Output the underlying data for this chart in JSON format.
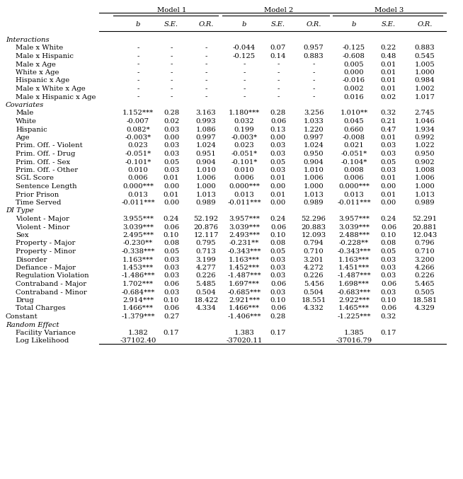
{
  "headers": [
    "b",
    "S.E.",
    "O.R.",
    "b",
    "S.E.",
    "O.R.",
    "b",
    "S.E.",
    "O.R."
  ],
  "model_labels": [
    "Model 1",
    "Model 2",
    "Model 3"
  ],
  "sections": [
    {
      "name": "Interactions",
      "rows": [
        [
          "Male x White",
          "-",
          "-",
          "-",
          "-0.044",
          "0.07",
          "0.957",
          "-0.125",
          "0.22",
          "0.883"
        ],
        [
          "Male x Hispanic",
          "-",
          "-",
          "-",
          "-0.125",
          "0.14",
          "0.883",
          "-0.608",
          "0.48",
          "0.545"
        ],
        [
          "Male x Age",
          "-",
          "-",
          "-",
          "-",
          "-",
          "-",
          "0.005",
          "0.01",
          "1.005"
        ],
        [
          "White x Age",
          "-",
          "-",
          "-",
          "-",
          "-",
          "-",
          "0.000",
          "0.01",
          "1.000"
        ],
        [
          "Hispanic x Age",
          "-",
          "-",
          "-",
          "-",
          "-",
          "-",
          "-0.016",
          "0.01",
          "0.984"
        ],
        [
          "Male x White x Age",
          "-",
          "-",
          "-",
          "-",
          "-",
          "-",
          "0.002",
          "0.01",
          "1.002"
        ],
        [
          "Male x Hispanic x Age",
          "-",
          "-",
          "-",
          "-",
          "-",
          "-",
          "0.016",
          "0.02",
          "1.017"
        ]
      ]
    },
    {
      "name": "Covariates",
      "rows": [
        [
          "Male",
          "1.152***",
          "0.28",
          "3.163",
          "1.180***",
          "0.28",
          "3.256",
          "1.010**",
          "0.32",
          "2.745"
        ],
        [
          "White",
          "-0.007",
          "0.02",
          "0.993",
          "0.032",
          "0.06",
          "1.033",
          "0.045",
          "0.21",
          "1.046"
        ],
        [
          "Hispanic",
          "0.082*",
          "0.03",
          "1.086",
          "0.199",
          "0.13",
          "1.220",
          "0.660",
          "0.47",
          "1.934"
        ],
        [
          "Age",
          "-0.003*",
          "0.00",
          "0.997",
          "-0.003*",
          "0.00",
          "0.997",
          "-0.008",
          "0.01",
          "0.992"
        ],
        [
          "Prim. Off. - Violent",
          "0.023",
          "0.03",
          "1.024",
          "0.023",
          "0.03",
          "1.024",
          "0.021",
          "0.03",
          "1.022"
        ],
        [
          "Prim. Off. - Drug",
          "-0.051*",
          "0.03",
          "0.951",
          "-0.051*",
          "0.03",
          "0.950",
          "-0.051*",
          "0.03",
          "0.950"
        ],
        [
          "Prim. Off. - Sex",
          "-0.101*",
          "0.05",
          "0.904",
          "-0.101*",
          "0.05",
          "0.904",
          "-0.104*",
          "0.05",
          "0.902"
        ],
        [
          "Prim. Off. - Other",
          "0.010",
          "0.03",
          "1.010",
          "0.010",
          "0.03",
          "1.010",
          "0.008",
          "0.03",
          "1.008"
        ],
        [
          "SGL Score",
          "0.006",
          "0.01",
          "1.006",
          "0.006",
          "0.01",
          "1.006",
          "0.006",
          "0.01",
          "1.006"
        ],
        [
          "Sentence Length",
          "0.000***",
          "0.00",
          "1.000",
          "0.000***",
          "0.00",
          "1.000",
          "0.000***",
          "0.00",
          "1.000"
        ],
        [
          "Prior Prison",
          "0.013",
          "0.01",
          "1.013",
          "0.013",
          "0.01",
          "1.013",
          "0.013",
          "0.01",
          "1.013"
        ],
        [
          "Time Served",
          "-0.011***",
          "0.00",
          "0.989",
          "-0.011***",
          "0.00",
          "0.989",
          "-0.011***",
          "0.00",
          "0.989"
        ]
      ]
    },
    {
      "name": "DI Type",
      "rows": [
        [
          "Violent - Major",
          "3.955***",
          "0.24",
          "52.192",
          "3.957***",
          "0.24",
          "52.296",
          "3.957***",
          "0.24",
          "52.291"
        ],
        [
          "Violent - Minor",
          "3.039***",
          "0.06",
          "20.876",
          "3.039***",
          "0.06",
          "20.883",
          "3.039***",
          "0.06",
          "20.881"
        ],
        [
          "Sex",
          "2.495***",
          "0.10",
          "12.117",
          "2.493***",
          "0.10",
          "12.093",
          "2.488***",
          "0.10",
          "12.043"
        ],
        [
          "Property - Major",
          "-0.230**",
          "0.08",
          "0.795",
          "-0.231**",
          "0.08",
          "0.794",
          "-0.228**",
          "0.08",
          "0.796"
        ],
        [
          "Property - Minor",
          "-0.338***",
          "0.05",
          "0.713",
          "-0.343***",
          "0.05",
          "0.710",
          "-0.343***",
          "0.05",
          "0.710"
        ],
        [
          "Disorder",
          "1.163***",
          "0.03",
          "3.199",
          "1.163***",
          "0.03",
          "3.201",
          "1.163***",
          "0.03",
          "3.200"
        ],
        [
          "Defiance - Major",
          "1.453***",
          "0.03",
          "4.277",
          "1.452***",
          "0.03",
          "4.272",
          "1.451***",
          "0.03",
          "4.266"
        ],
        [
          "Regulation Violation",
          "-1.486***",
          "0.03",
          "0.226",
          "-1.487***",
          "0.03",
          "0.226",
          "-1.487***",
          "0.03",
          "0.226"
        ],
        [
          "Contraband - Major",
          "1.702***",
          "0.06",
          "5.485",
          "1.697***",
          "0.06",
          "5.456",
          "1.698***",
          "0.06",
          "5.465"
        ],
        [
          "Contraband - Minor",
          "-0.684***",
          "0.03",
          "0.504",
          "-0.685***",
          "0.03",
          "0.504",
          "-0.683***",
          "0.03",
          "0.505"
        ],
        [
          "Drug",
          "2.914***",
          "0.10",
          "18.422",
          "2.921***",
          "0.10",
          "18.551",
          "2.922***",
          "0.10",
          "18.581"
        ],
        [
          "Total Charges",
          "1.466***",
          "0.06",
          "4.334",
          "1.466***",
          "0.06",
          "4.332",
          "1.465***",
          "0.06",
          "4.329"
        ]
      ]
    }
  ],
  "constant_row": [
    "Constant",
    "-1.379***",
    "0.27",
    "",
    "-1.406***",
    "0.28",
    "",
    "-1.225***",
    "0.32",
    ""
  ],
  "random_section": "Random Effect",
  "random_rows": [
    [
      "Facility Variance",
      "1.382",
      "0.17",
      "",
      "1.383",
      "0.17",
      "",
      "1.385",
      "0.17",
      ""
    ],
    [
      "Log Likelihood",
      "-37102.40",
      "",
      "",
      "-37020.11",
      "",
      "",
      "-37016.79",
      "",
      ""
    ]
  ],
  "bg_color": "white",
  "text_color": "black",
  "font_size": 7.2
}
